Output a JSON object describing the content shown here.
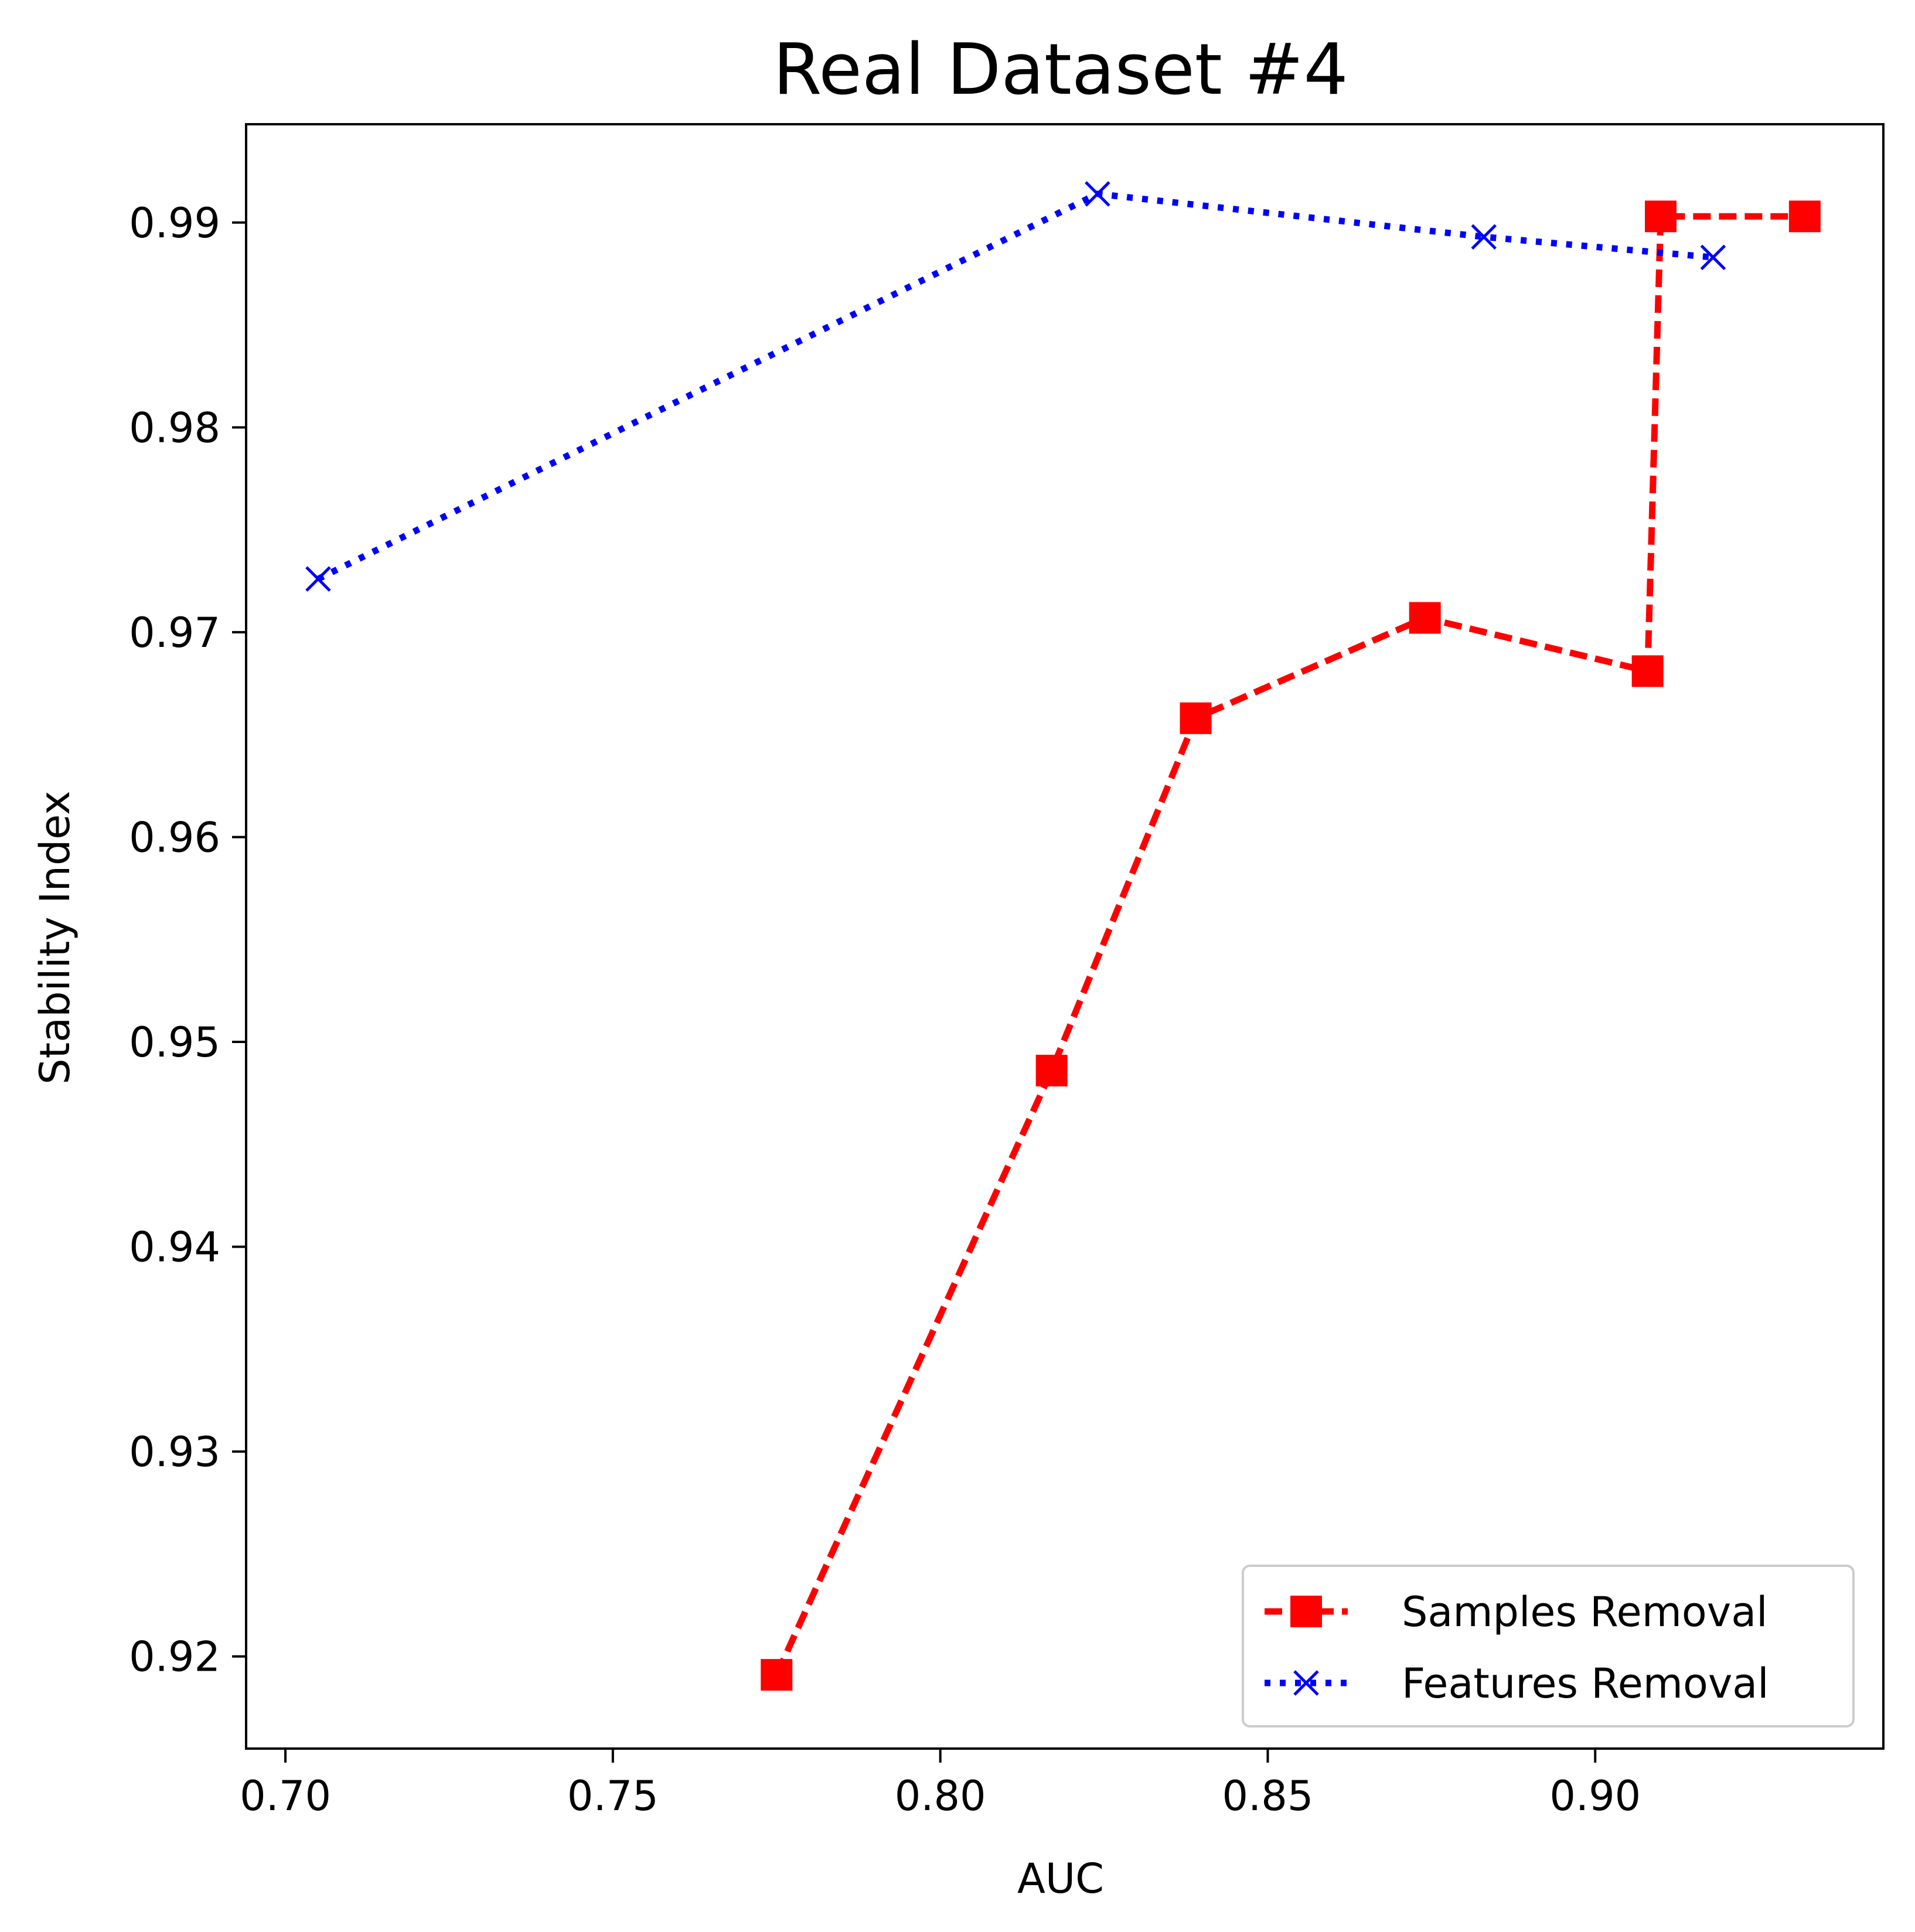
{
  "chart_data": {
    "type": "line",
    "title": "Real Dataset #4",
    "xlabel": "AUC",
    "ylabel": "Stability Index",
    "xlim": [
      0.694,
      0.944
    ],
    "ylim": [
      0.9155,
      0.9948
    ],
    "xticks": [
      0.7,
      0.75,
      0.8,
      0.85,
      0.9
    ],
    "xtick_labels": [
      "0.70",
      "0.75",
      "0.80",
      "0.85",
      "0.90"
    ],
    "yticks": [
      0.92,
      0.93,
      0.94,
      0.95,
      0.96,
      0.97,
      0.98,
      0.99
    ],
    "ytick_labels": [
      "0.92",
      "0.93",
      "0.94",
      "0.95",
      "0.96",
      "0.97",
      "0.98",
      "0.99"
    ],
    "grid": false,
    "legend_position": "bottom-right",
    "series": [
      {
        "name": "Samples Removal",
        "color": "#ff0000",
        "line_style": "dashed",
        "marker": "square",
        "x": [
          0.775,
          0.817,
          0.839,
          0.874,
          0.908,
          0.91,
          0.932
        ],
        "y": [
          0.9191,
          0.9486,
          0.9658,
          0.9707,
          0.9681,
          0.9903,
          0.9903
        ]
      },
      {
        "name": "Features Removal",
        "color": "#0000ff",
        "line_style": "dotted",
        "marker": "x",
        "x": [
          0.705,
          0.824,
          0.883,
          0.918
        ],
        "y": [
          0.9726,
          0.9914,
          0.9893,
          0.9883
        ]
      }
    ]
  }
}
